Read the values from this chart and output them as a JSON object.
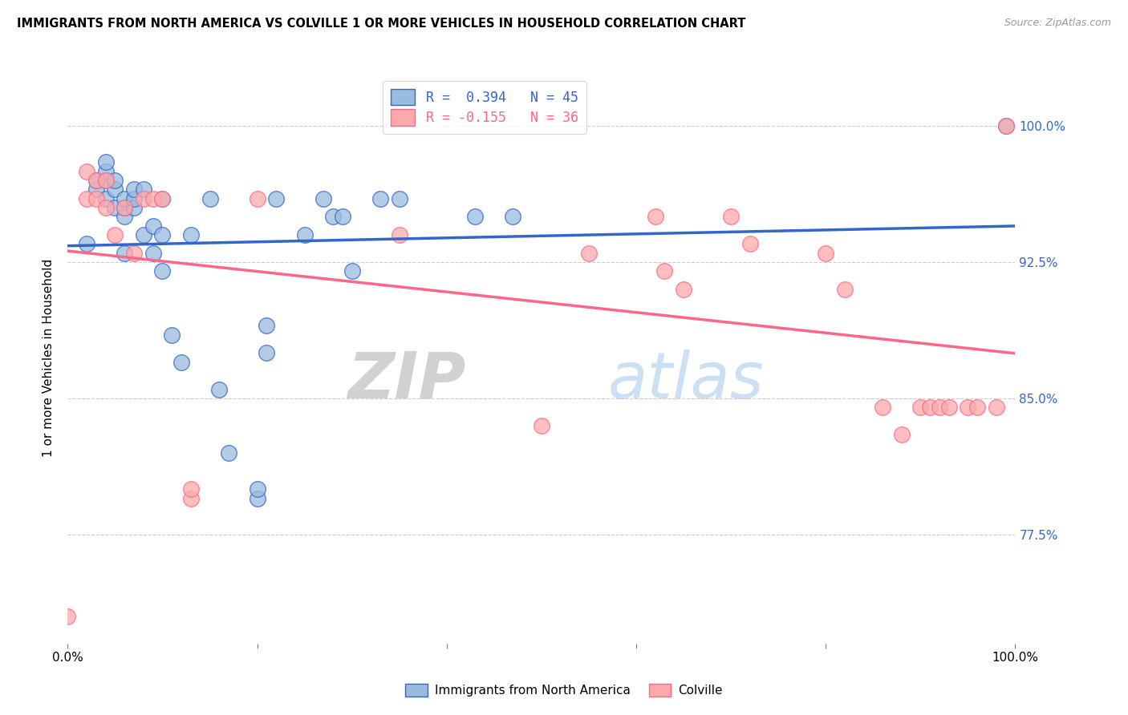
{
  "title": "IMMIGRANTS FROM NORTH AMERICA VS COLVILLE 1 OR MORE VEHICLES IN HOUSEHOLD CORRELATION CHART",
  "source": "Source: ZipAtlas.com",
  "ylabel": "1 or more Vehicles in Household",
  "ytick_labels": [
    "77.5%",
    "85.0%",
    "92.5%",
    "100.0%"
  ],
  "ytick_values": [
    0.775,
    0.85,
    0.925,
    1.0
  ],
  "xlim": [
    0.0,
    1.0
  ],
  "ylim": [
    0.715,
    1.03
  ],
  "legend_blue_label": "R =  0.394   N = 45",
  "legend_pink_label": "R = -0.155   N = 36",
  "blue_color": "#99BBDD",
  "pink_color": "#FFAAAA",
  "blue_line_color": "#3366CC",
  "pink_line_color": "#FF6688",
  "watermark_zip": "ZIP",
  "watermark_atlas": "atlas",
  "blue_points_x": [
    0.02,
    0.03,
    0.03,
    0.04,
    0.04,
    0.04,
    0.04,
    0.05,
    0.05,
    0.05,
    0.06,
    0.06,
    0.06,
    0.06,
    0.07,
    0.07,
    0.07,
    0.08,
    0.08,
    0.09,
    0.09,
    0.1,
    0.1,
    0.1,
    0.11,
    0.12,
    0.13,
    0.15,
    0.16,
    0.17,
    0.2,
    0.2,
    0.21,
    0.21,
    0.22,
    0.25,
    0.27,
    0.28,
    0.29,
    0.3,
    0.33,
    0.35,
    0.43,
    0.47,
    0.99
  ],
  "blue_points_y": [
    0.935,
    0.965,
    0.97,
    0.96,
    0.97,
    0.975,
    0.98,
    0.955,
    0.965,
    0.97,
    0.93,
    0.95,
    0.955,
    0.96,
    0.955,
    0.96,
    0.965,
    0.94,
    0.965,
    0.93,
    0.945,
    0.92,
    0.94,
    0.96,
    0.885,
    0.87,
    0.94,
    0.96,
    0.855,
    0.82,
    0.795,
    0.8,
    0.875,
    0.89,
    0.96,
    0.94,
    0.96,
    0.95,
    0.95,
    0.92,
    0.96,
    0.96,
    0.95,
    0.95,
    1.0
  ],
  "pink_points_x": [
    0.0,
    0.02,
    0.02,
    0.03,
    0.03,
    0.04,
    0.04,
    0.05,
    0.06,
    0.07,
    0.08,
    0.09,
    0.1,
    0.13,
    0.13,
    0.2,
    0.35,
    0.5,
    0.55,
    0.62,
    0.63,
    0.65,
    0.7,
    0.72,
    0.8,
    0.82,
    0.86,
    0.88,
    0.9,
    0.91,
    0.92,
    0.93,
    0.95,
    0.96,
    0.98,
    0.99
  ],
  "pink_points_y": [
    0.73,
    0.975,
    0.96,
    0.97,
    0.96,
    0.955,
    0.97,
    0.94,
    0.955,
    0.93,
    0.96,
    0.96,
    0.96,
    0.795,
    0.8,
    0.96,
    0.94,
    0.835,
    0.93,
    0.95,
    0.92,
    0.91,
    0.95,
    0.935,
    0.93,
    0.91,
    0.845,
    0.83,
    0.845,
    0.845,
    0.845,
    0.845,
    0.845,
    0.845,
    0.845,
    1.0
  ]
}
